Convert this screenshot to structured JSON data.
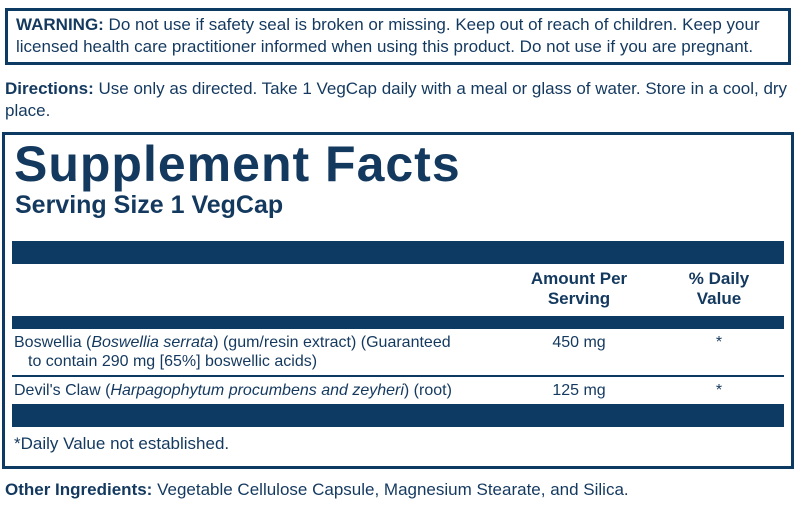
{
  "colors": {
    "navy_bars_and_borders": "#0d3a63",
    "text_navy": "#14395f",
    "background": "#ffffff"
  },
  "warning": {
    "label": "WARNING:",
    "text": " Do not use if safety seal is broken or missing. Keep out of reach of children. Keep your licensed health care practitioner informed when using this product. Do not use if you are pregnant."
  },
  "directions": {
    "label": "Directions:",
    "text": " Use only as directed. Take 1 VegCap daily with a meal or glass of water. Store in a cool, dry place."
  },
  "supplement_facts": {
    "title": "Supplement Facts",
    "serving_size": "Serving Size 1 VegCap",
    "columns": {
      "amount_line1": "Amount Per",
      "amount_line2": "Serving",
      "dv_line1": "% Daily",
      "dv_line2": "Value"
    },
    "rows": [
      {
        "name_pre": "Boswellia (",
        "name_italic": "Boswellia serrata",
        "name_post": ") (gum/resin extract) (Guaranteed",
        "name_line2": "to contain 290 mg [65%] boswellic acids)",
        "amount": "450 mg",
        "daily_value": "*"
      },
      {
        "name_pre": "Devil's Claw (",
        "name_italic": "Harpagophytum procumbens and zeyheri",
        "name_post": ") (root)",
        "amount": "125 mg",
        "daily_value": "*"
      }
    ],
    "footnote": "*Daily Value not established."
  },
  "other_ingredients": {
    "label": "Other Ingredients:",
    "text": " Vegetable Cellulose Capsule, Magnesium Stearate, and Silica."
  }
}
